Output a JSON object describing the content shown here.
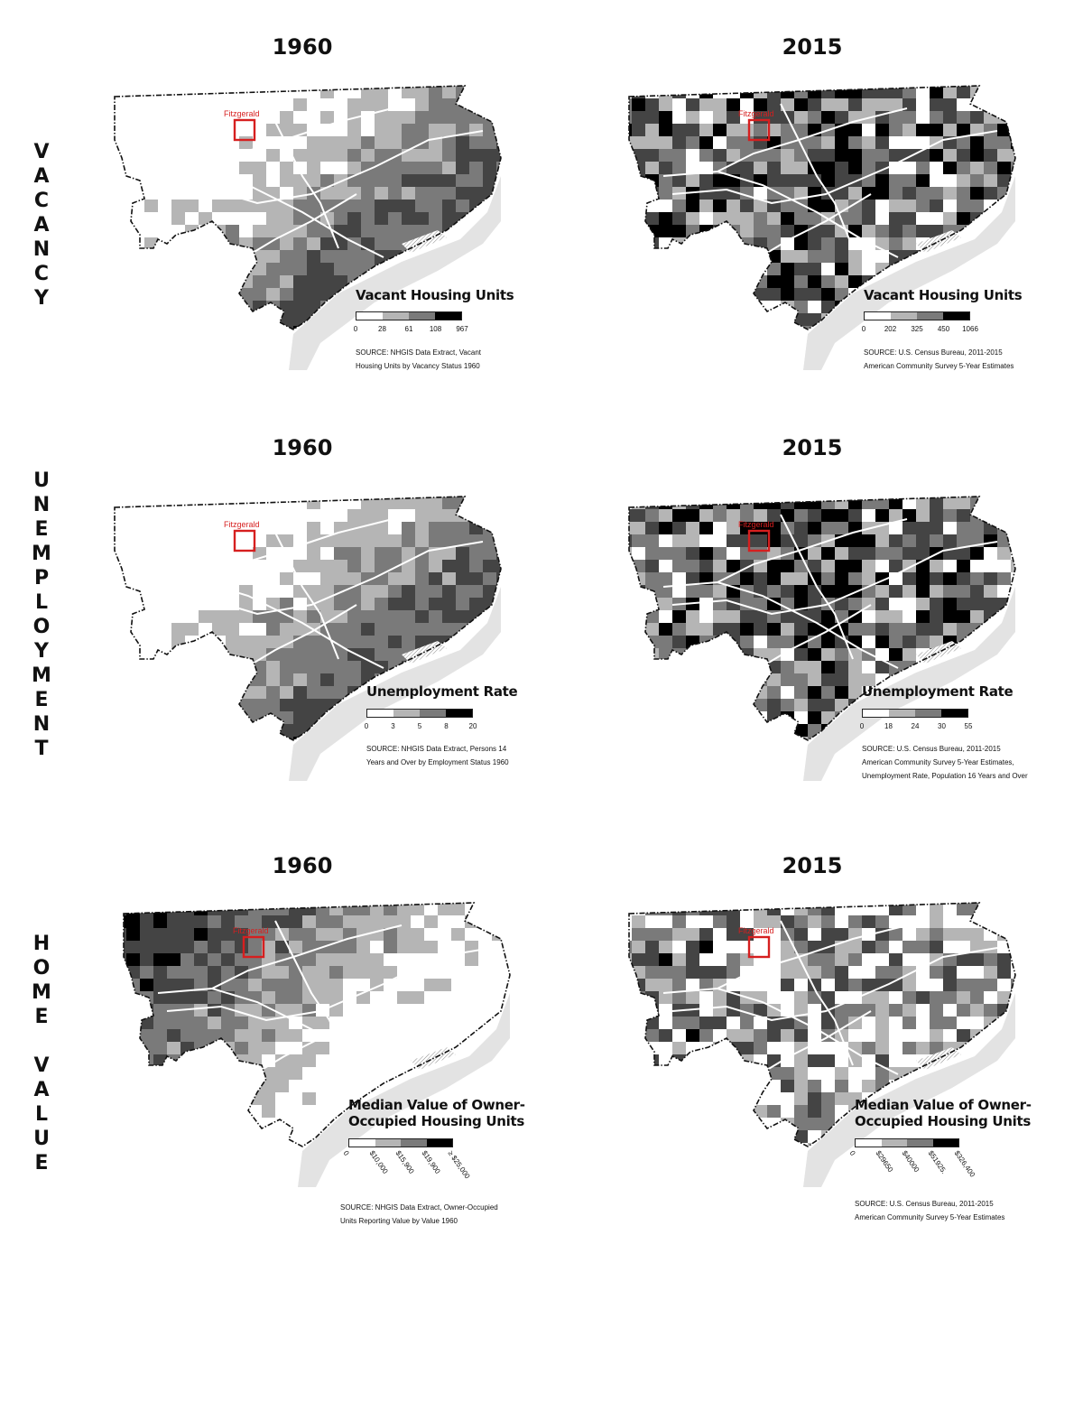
{
  "rows": [
    {
      "id": "vacancy",
      "label": [
        "V",
        "A",
        "C",
        "A",
        "N",
        "C",
        "Y"
      ]
    },
    {
      "id": "unemployment",
      "label": [
        "U",
        "N",
        "E",
        "M",
        "P",
        "L",
        "O",
        "Y",
        "M",
        "E",
        "N",
        "T"
      ]
    },
    {
      "id": "home-value",
      "label": [
        "H",
        "O",
        "M",
        "E",
        "",
        "V",
        "A",
        "L",
        "U",
        "E"
      ]
    }
  ],
  "marker_label": "Fitzgerald",
  "colors": {
    "class0": "#ffffff",
    "class1": "#b5b5b5",
    "class2": "#7a7a7a",
    "class3": "#444444",
    "class4": "#000000",
    "marker": "#d61f1f",
    "water": "#e3e3e3",
    "road": "#ffffff"
  },
  "panels": [
    {
      "row": "vacancy",
      "year": "1960",
      "legend_title": [
        "Vacant Housing Units"
      ],
      "legend_breaks": [
        "0",
        "28",
        "61",
        "108",
        "967"
      ],
      "source": [
        "SOURCE: NHGIS Data Extract, Vacant",
        "Housing Units by Vacancy Status 1960"
      ],
      "intensity": "east"
    },
    {
      "row": "vacancy",
      "year": "2015",
      "legend_title": [
        "Vacant Housing Units"
      ],
      "legend_breaks": [
        "0",
        "202",
        "325",
        "450",
        "1066"
      ],
      "source": [
        "SOURCE: U.S. Census Bureau, 2011-2015",
        "American Community Survey 5-Year Estimates"
      ],
      "intensity": "mixed"
    },
    {
      "row": "unemployment",
      "year": "1960",
      "legend_title": [
        "Unemployment Rate"
      ],
      "legend_breaks": [
        "0",
        "3",
        "5",
        "8",
        "20"
      ],
      "source": [
        "SOURCE: NHGIS Data Extract, Persons 14",
        "Years and Over by Employment Status 1960"
      ],
      "intensity": "east"
    },
    {
      "row": "unemployment",
      "year": "2015",
      "legend_title": [
        "Unemployment Rate"
      ],
      "legend_breaks": [
        "0",
        "18",
        "24",
        "30",
        "55"
      ],
      "source": [
        "SOURCE: U.S. Census Bureau, 2011-2015",
        "American Community Survey 5-Year Estimates,",
        "Unemployment Rate, Population 16 Years and Over"
      ],
      "intensity": "mixed"
    },
    {
      "row": "home-value",
      "year": "1960",
      "legend_title": [
        "Median Value of Owner-",
        "Occupied Housing Units"
      ],
      "legend_breaks": [
        "0",
        "$10,000",
        "$15,900",
        "$19,900",
        "≥ $25,000"
      ],
      "source": [
        "SOURCE: NHGIS Data Extract, Owner-Occupied",
        "Units Reporting Value by Value 1960"
      ],
      "intensity": "west"
    },
    {
      "row": "home-value",
      "year": "2015",
      "legend_title": [
        "Median Value of Owner-",
        "Occupied Housing Units"
      ],
      "legend_breaks": [
        "0",
        "$29650",
        "$40000",
        "$51925.",
        "$326,400"
      ],
      "source": [
        "SOURCE: U.S. Census Bureau, 2011-2015",
        "American Community Survey 5-Year Estimates"
      ],
      "intensity": "patchy"
    }
  ]
}
